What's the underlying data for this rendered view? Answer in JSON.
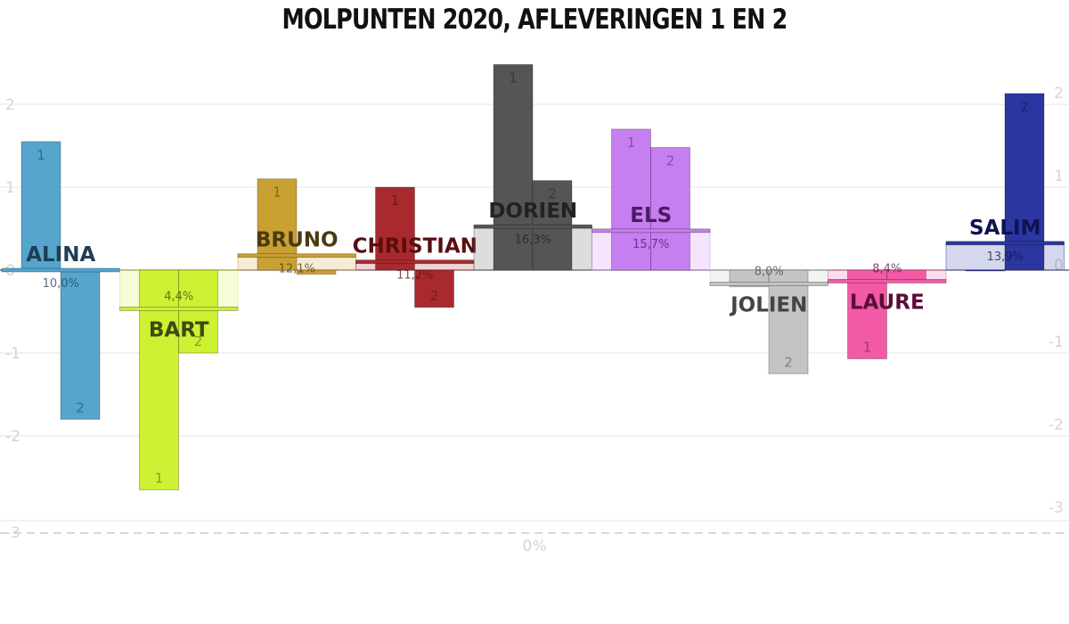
{
  "chart_data": {
    "type": "bar",
    "title": "MOLPUNTEN 2020, AFLEVERINGEN 1 EN 2",
    "ylim": [
      -3,
      2
    ],
    "yticks": [
      "2",
      "1",
      "0",
      "-1",
      "-2",
      "-3"
    ],
    "baseline_label": "0%",
    "grid": true,
    "episode_labels": [
      "1",
      "2"
    ],
    "series": [
      {
        "name": "ALINA",
        "color": "#55a5cc",
        "text_color": "#1e3e56",
        "episodes": [
          1.55,
          -1.8
        ],
        "percentage": "10,0%",
        "pct_value": 10.0
      },
      {
        "name": "BART",
        "color": "#cdf133",
        "text_color": "#3e4a10",
        "episodes": [
          -2.65,
          -1.0
        ],
        "percentage": "4,4%",
        "pct_value": 4.4
      },
      {
        "name": "BRUNO",
        "color": "#c9a032",
        "text_color": "#4a3a0e",
        "episodes": [
          1.1,
          -0.05
        ],
        "percentage": "12,1%",
        "pct_value": 12.1
      },
      {
        "name": "CHRISTIAN",
        "color": "#a82a2e",
        "text_color": "#5a0e10",
        "episodes": [
          1.0,
          -0.45
        ],
        "percentage": "11,2%",
        "pct_value": 11.2
      },
      {
        "name": "DORIEN",
        "color": "#555555",
        "text_color": "#222222",
        "episodes": [
          2.48,
          1.08
        ],
        "percentage": "16,3%",
        "pct_value": 16.3
      },
      {
        "name": "ELS",
        "color": "#c67ef0",
        "text_color": "#4a1a66",
        "episodes": [
          1.7,
          1.48
        ],
        "percentage": "15,7%",
        "pct_value": 15.7
      },
      {
        "name": "JOLIEN",
        "color": "#c4c4c4",
        "text_color": "#444444",
        "episodes": [
          -0.2,
          -1.25
        ],
        "percentage": "8,0%",
        "pct_value": 8.0
      },
      {
        "name": "LAURE",
        "color": "#f25aa6",
        "text_color": "#5a0e36",
        "episodes": [
          -1.07,
          -0.13
        ],
        "percentage": "8,4%",
        "pct_value": 8.4
      },
      {
        "name": "SALIM",
        "color": "#2c36a0",
        "text_color": "#0e1450",
        "episodes": [
          -0.01,
          2.13
        ],
        "percentage": "13,9%",
        "pct_value": 13.9
      }
    ]
  }
}
